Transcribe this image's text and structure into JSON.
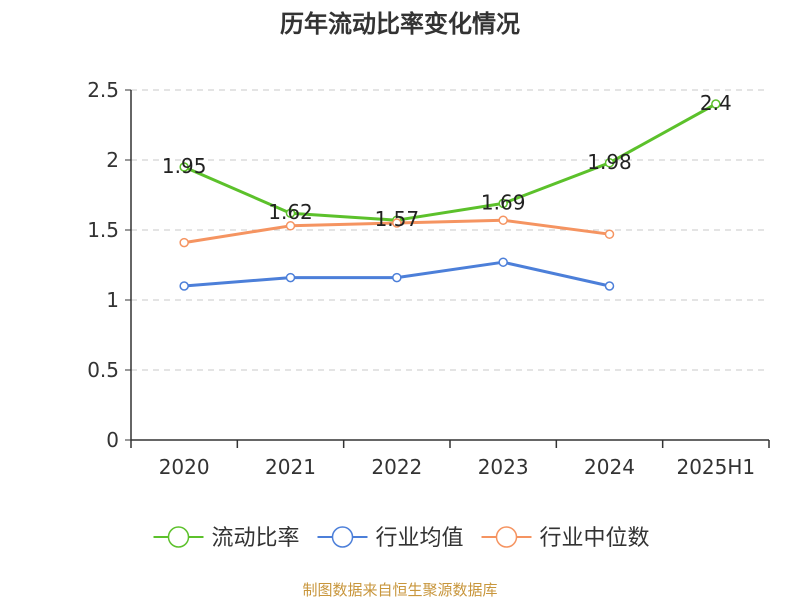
{
  "chart_data": {
    "type": "line",
    "title": "历年流动比率变化情况",
    "categories": [
      "2020",
      "2021",
      "2022",
      "2023",
      "2024",
      "2025H1"
    ],
    "y_ticks": [
      "0",
      "0.5",
      "1",
      "1.5",
      "2",
      "2.5"
    ],
    "ylim": [
      0,
      2.5
    ],
    "grid": true,
    "legend_position": "bottom",
    "series": [
      {
        "name": "流动比率",
        "color": "#5CC12B",
        "values": [
          1.95,
          1.62,
          1.57,
          1.69,
          1.98,
          2.4
        ],
        "labels": [
          "1.95",
          "1.62",
          "1.57",
          "1.69",
          "1.98",
          "2.4"
        ]
      },
      {
        "name": "行业均值",
        "color": "#4C7FD9",
        "values": [
          1.1,
          1.16,
          1.16,
          1.27,
          1.1,
          null
        ],
        "labels": []
      },
      {
        "name": "行业中位数",
        "color": "#F59461",
        "values": [
          1.41,
          1.53,
          1.55,
          1.57,
          1.47,
          null
        ],
        "labels": []
      }
    ],
    "source_note": "制图数据来自恒生聚源数据库",
    "source_color": "#C8963C"
  }
}
